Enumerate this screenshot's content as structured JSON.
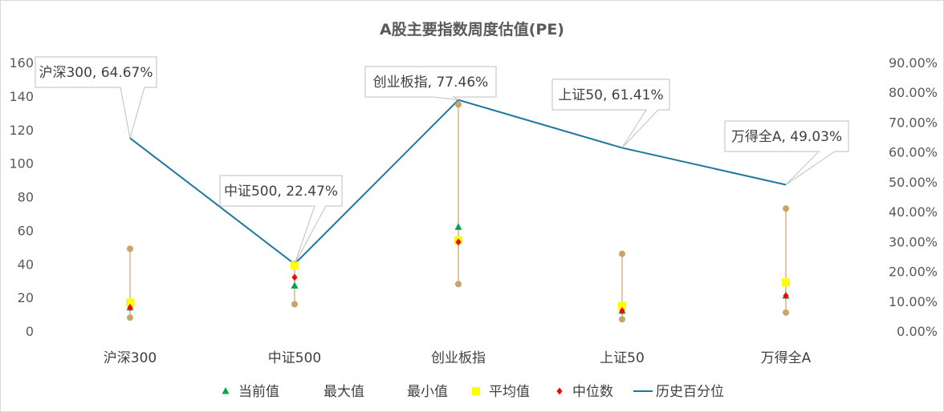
{
  "chart_data": {
    "type": "line",
    "title": "A股主要指数周度估值(PE)",
    "categories": [
      "沪深300",
      "中证500",
      "创业板指",
      "上证50",
      "万得全A"
    ],
    "ylim": [
      0,
      160
    ],
    "y_ticks": [
      "0",
      "20",
      "40",
      "60",
      "80",
      "100",
      "120",
      "140",
      "160"
    ],
    "y2lim": [
      0,
      90
    ],
    "y2_ticks": [
      "0.00%",
      "10.00%",
      "20.00%",
      "30.00%",
      "40.00%",
      "50.00%",
      "60.00%",
      "70.00%",
      "80.00%",
      "90.00%"
    ],
    "grid": false,
    "legend": "bottom",
    "series": [
      {
        "name": "当前值",
        "axis": "left",
        "marker": "triangle",
        "color": "#00a651",
        "values": [
          14,
          27,
          62,
          12,
          21
        ]
      },
      {
        "name": "最大值",
        "axis": "left",
        "marker": "circle",
        "color": "#c8a46a",
        "values": [
          49,
          40,
          135,
          46,
          73
        ]
      },
      {
        "name": "最小值",
        "axis": "left",
        "marker": "circle",
        "color": "#c8a46a",
        "values": [
          8,
          16,
          28,
          7,
          11
        ]
      },
      {
        "name": "平均值",
        "axis": "left",
        "marker": "square",
        "color": "#ffff00",
        "values": [
          17,
          39,
          54,
          15,
          29
        ]
      },
      {
        "name": "中位数",
        "axis": "left",
        "marker": "diamond",
        "color": "#ff0000",
        "values": [
          14,
          32,
          53,
          12,
          21
        ]
      },
      {
        "name": "历史百分位",
        "axis": "right",
        "marker": "line",
        "color": "#1f77a0",
        "values": [
          64.67,
          22.47,
          77.46,
          61.41,
          49.03
        ]
      }
    ],
    "annotations": [
      "沪深300, 64.67%",
      "中证500, 22.47%",
      "创业板指, 77.46%",
      "上证50, 61.41%",
      "万得全A, 49.03%"
    ]
  }
}
